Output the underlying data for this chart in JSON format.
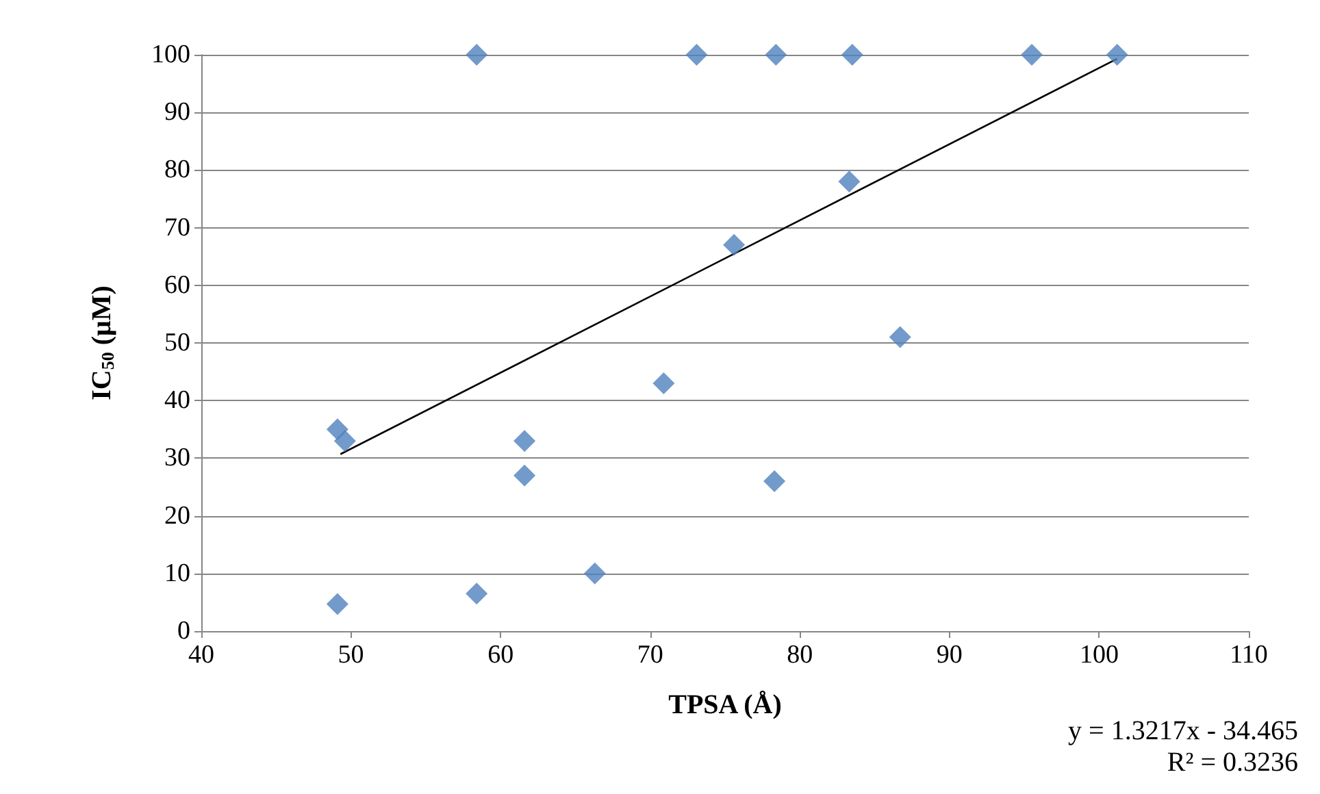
{
  "chart_data": {
    "type": "scatter",
    "xlabel": "TPSA (Å)",
    "ylabel": "IC$_{50}$ (μM)",
    "xlim": [
      40,
      110
    ],
    "xticks": [
      40,
      50,
      60,
      70,
      80,
      90,
      100,
      110
    ],
    "ylim": [
      0,
      100
    ],
    "yticks": [
      0,
      10,
      20,
      30,
      40,
      50,
      60,
      70,
      80,
      90,
      100
    ],
    "grid": "y",
    "marker": "diamond",
    "series": [
      {
        "type": "scatter",
        "color": "#4f81bd",
        "x": [
          58.4,
          73.1,
          78.4,
          83.5,
          95.5,
          101.2,
          83.3,
          75.6,
          86.7,
          70.9,
          49.1,
          49.6,
          61.6,
          61.6,
          78.3,
          66.3,
          58.4,
          49.1
        ],
        "values": [
          100,
          100,
          100,
          100,
          100,
          100,
          78,
          67,
          51,
          43,
          35,
          33,
          33,
          27,
          26,
          10,
          6.5,
          4.7
        ]
      },
      {
        "type": "line",
        "color": "#000000",
        "marker": "none",
        "x": [
          49.3,
          101.2
        ],
        "values": [
          30.7,
          99.3
        ]
      }
    ],
    "annotations": [
      "y = 1.3217x - 34.465",
      "R² = 0.3236"
    ]
  }
}
